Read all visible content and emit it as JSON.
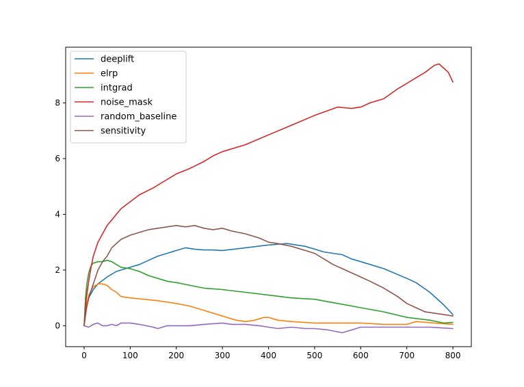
{
  "chart_data": {
    "type": "line",
    "title": "",
    "xlabel": "",
    "ylabel": "",
    "xlim": [
      -40,
      840
    ],
    "ylim": [
      -0.75,
      10
    ],
    "xticks": [
      0,
      100,
      200,
      300,
      400,
      500,
      600,
      700,
      800
    ],
    "xtick_labels": [
      "0",
      "100",
      "200",
      "300",
      "400",
      "500",
      "600",
      "700",
      "800"
    ],
    "yticks": [
      0,
      2,
      4,
      6,
      8
    ],
    "ytick_labels": [
      "0",
      "2",
      "4",
      "6",
      "8"
    ],
    "grid": false,
    "legend_position": "upper-left",
    "series": [
      {
        "name": "deeplift",
        "color": "#1f77b4",
        "x": [
          0,
          5,
          10,
          20,
          30,
          50,
          70,
          90,
          100,
          120,
          140,
          160,
          180,
          200,
          220,
          240,
          260,
          280,
          300,
          350,
          400,
          440,
          480,
          500,
          520,
          540,
          560,
          580,
          600,
          650,
          700,
          720,
          750,
          780,
          800
        ],
        "y": [
          0,
          0.7,
          1.0,
          1.3,
          1.5,
          1.75,
          1.95,
          2.05,
          2.1,
          2.2,
          2.35,
          2.5,
          2.6,
          2.7,
          2.8,
          2.75,
          2.72,
          2.72,
          2.7,
          2.8,
          2.9,
          2.95,
          2.85,
          2.75,
          2.65,
          2.6,
          2.55,
          2.4,
          2.3,
          2.05,
          1.7,
          1.55,
          1.2,
          0.75,
          0.4
        ]
      },
      {
        "name": "elrp",
        "color": "#ff7f0e",
        "x": [
          0,
          5,
          10,
          20,
          30,
          40,
          50,
          60,
          70,
          80,
          100,
          130,
          160,
          200,
          230,
          260,
          300,
          330,
          350,
          370,
          390,
          400,
          420,
          450,
          500,
          550,
          600,
          650,
          700,
          720,
          760,
          800
        ],
        "y": [
          0,
          0.7,
          1.1,
          1.4,
          1.5,
          1.5,
          1.45,
          1.3,
          1.2,
          1.05,
          1.0,
          0.95,
          0.9,
          0.8,
          0.7,
          0.55,
          0.35,
          0.2,
          0.15,
          0.2,
          0.3,
          0.3,
          0.2,
          0.15,
          0.1,
          0.1,
          0.1,
          0.05,
          0.05,
          0.15,
          0.1,
          0.05
        ]
      },
      {
        "name": "intgrad",
        "color": "#2ca02c",
        "x": [
          0,
          3,
          6,
          10,
          15,
          20,
          30,
          40,
          50,
          60,
          70,
          80,
          100,
          120,
          140,
          160,
          180,
          200,
          230,
          260,
          300,
          350,
          400,
          450,
          500,
          550,
          600,
          650,
          700,
          750,
          780,
          800
        ],
        "y": [
          0,
          1.0,
          1.5,
          1.9,
          2.15,
          2.25,
          2.3,
          2.3,
          2.35,
          2.3,
          2.2,
          2.1,
          2.05,
          1.95,
          1.8,
          1.7,
          1.6,
          1.55,
          1.45,
          1.35,
          1.3,
          1.2,
          1.1,
          1.0,
          0.95,
          0.8,
          0.65,
          0.5,
          0.3,
          0.2,
          0.1,
          0.12
        ]
      },
      {
        "name": "noise_mask",
        "color": "#d62728",
        "x": [
          0,
          5,
          10,
          15,
          20,
          30,
          40,
          50,
          60,
          70,
          80,
          100,
          120,
          150,
          180,
          200,
          230,
          260,
          280,
          300,
          350,
          400,
          450,
          500,
          550,
          580,
          600,
          620,
          650,
          680,
          700,
          720,
          740,
          760,
          770,
          780,
          790,
          800
        ],
        "y": [
          0,
          1.0,
          1.6,
          2.1,
          2.5,
          3.0,
          3.3,
          3.6,
          3.8,
          4.0,
          4.2,
          4.45,
          4.7,
          4.95,
          5.25,
          5.45,
          5.65,
          5.9,
          6.1,
          6.25,
          6.5,
          6.85,
          7.2,
          7.55,
          7.85,
          7.8,
          7.85,
          8.0,
          8.15,
          8.5,
          8.7,
          8.9,
          9.1,
          9.35,
          9.4,
          9.25,
          9.1,
          8.75
        ]
      },
      {
        "name": "random_baseline",
        "color": "#9467bd",
        "x": [
          0,
          10,
          20,
          30,
          40,
          50,
          60,
          70,
          80,
          100,
          120,
          150,
          160,
          180,
          200,
          230,
          260,
          300,
          320,
          350,
          380,
          400,
          420,
          450,
          480,
          500,
          530,
          560,
          580,
          600,
          620,
          650,
          700,
          750,
          800
        ],
        "y": [
          0,
          -0.05,
          0.05,
          0.1,
          0.0,
          0.0,
          0.05,
          0.0,
          0.1,
          0.1,
          0.05,
          -0.05,
          -0.1,
          0.0,
          0.0,
          0.0,
          0.05,
          0.1,
          0.05,
          0.05,
          0.0,
          -0.05,
          -0.1,
          -0.05,
          -0.1,
          -0.1,
          -0.15,
          -0.25,
          -0.15,
          -0.05,
          -0.05,
          -0.05,
          -0.05,
          -0.05,
          -0.1
        ]
      },
      {
        "name": "sensitivity",
        "color": "#8c564b",
        "x": [
          0,
          5,
          10,
          20,
          30,
          40,
          50,
          60,
          70,
          80,
          100,
          120,
          140,
          160,
          180,
          200,
          220,
          240,
          260,
          280,
          300,
          320,
          350,
          380,
          400,
          420,
          450,
          480,
          500,
          520,
          540,
          560,
          580,
          600,
          620,
          650,
          680,
          700,
          720,
          740,
          760,
          780,
          800
        ],
        "y": [
          0,
          0.6,
          1.0,
          1.5,
          2.0,
          2.3,
          2.5,
          2.8,
          2.95,
          3.1,
          3.25,
          3.35,
          3.45,
          3.5,
          3.55,
          3.6,
          3.55,
          3.6,
          3.5,
          3.45,
          3.5,
          3.4,
          3.3,
          3.15,
          3.0,
          2.95,
          2.85,
          2.7,
          2.6,
          2.4,
          2.2,
          2.05,
          1.9,
          1.75,
          1.6,
          1.35,
          1.05,
          0.8,
          0.65,
          0.5,
          0.45,
          0.4,
          0.35
        ]
      }
    ]
  }
}
